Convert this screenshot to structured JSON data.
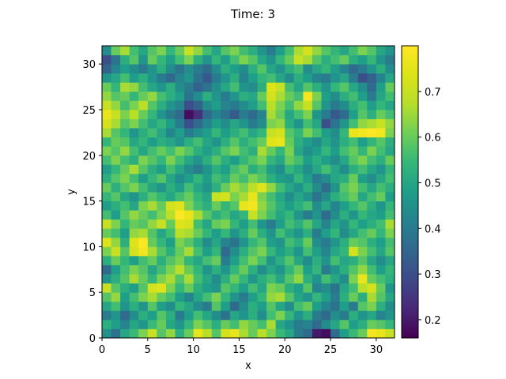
{
  "chart_data": {
    "type": "heatmap",
    "title": "Time: 3",
    "xlabel": "x",
    "ylabel": "y",
    "xlim": [
      0,
      32
    ],
    "ylim": [
      0,
      32
    ],
    "x_ticks": [
      0,
      5,
      10,
      15,
      20,
      25,
      30
    ],
    "y_ticks": [
      0,
      5,
      10,
      15,
      20,
      25,
      30
    ],
    "colorbar": {
      "colormap": "viridis",
      "vmin": 0.16,
      "vmax": 0.8,
      "ticks": [
        0.2,
        0.3,
        0.4,
        0.5,
        0.6,
        0.7
      ]
    },
    "grid_size": [
      32,
      32
    ],
    "values_note_rows_bottom_to_top": "",
    "values": [
      [
        0.45,
        0.38,
        0.5,
        0.55,
        0.62,
        0.7,
        0.58,
        0.64,
        0.52,
        0.6,
        0.76,
        0.68,
        0.58,
        0.72,
        0.76,
        0.66,
        0.6,
        0.68,
        0.62,
        0.55,
        0.5,
        0.4,
        0.36,
        0.2,
        0.18,
        0.36,
        0.48,
        0.55,
        0.6,
        0.78,
        0.76,
        0.7
      ],
      [
        0.52,
        0.48,
        0.42,
        0.5,
        0.46,
        0.55,
        0.6,
        0.5,
        0.46,
        0.54,
        0.62,
        0.58,
        0.52,
        0.6,
        0.56,
        0.64,
        0.6,
        0.56,
        0.66,
        0.5,
        0.46,
        0.4,
        0.42,
        0.36,
        0.44,
        0.5,
        0.58,
        0.48,
        0.52,
        0.6,
        0.58,
        0.54
      ],
      [
        0.4,
        0.46,
        0.36,
        0.44,
        0.52,
        0.48,
        0.58,
        0.52,
        0.4,
        0.48,
        0.56,
        0.5,
        0.44,
        0.38,
        0.5,
        0.46,
        0.52,
        0.44,
        0.56,
        0.62,
        0.54,
        0.46,
        0.52,
        0.4,
        0.36,
        0.44,
        0.4,
        0.52,
        0.46,
        0.5,
        0.42,
        0.46
      ],
      [
        0.5,
        0.56,
        0.46,
        0.52,
        0.46,
        0.58,
        0.48,
        0.44,
        0.54,
        0.5,
        0.44,
        0.4,
        0.58,
        0.48,
        0.36,
        0.44,
        0.52,
        0.48,
        0.58,
        0.5,
        0.44,
        0.56,
        0.6,
        0.48,
        0.42,
        0.38,
        0.48,
        0.4,
        0.58,
        0.62,
        0.52,
        0.44
      ],
      [
        0.58,
        0.64,
        0.48,
        0.56,
        0.62,
        0.66,
        0.6,
        0.56,
        0.48,
        0.42,
        0.5,
        0.56,
        0.62,
        0.54,
        0.46,
        0.4,
        0.48,
        0.54,
        0.64,
        0.66,
        0.58,
        0.5,
        0.46,
        0.54,
        0.48,
        0.4,
        0.52,
        0.6,
        0.52,
        0.66,
        0.58,
        0.5
      ],
      [
        0.7,
        0.58,
        0.52,
        0.48,
        0.58,
        0.72,
        0.74,
        0.62,
        0.54,
        0.6,
        0.52,
        0.48,
        0.46,
        0.58,
        0.54,
        0.48,
        0.56,
        0.5,
        0.62,
        0.6,
        0.52,
        0.48,
        0.58,
        0.42,
        0.44,
        0.38,
        0.5,
        0.56,
        0.68,
        0.72,
        0.6,
        0.46
      ],
      [
        0.46,
        0.52,
        0.58,
        0.66,
        0.6,
        0.54,
        0.62,
        0.66,
        0.58,
        0.66,
        0.56,
        0.5,
        0.44,
        0.52,
        0.6,
        0.54,
        0.46,
        0.52,
        0.56,
        0.5,
        0.58,
        0.64,
        0.52,
        0.46,
        0.56,
        0.5,
        0.44,
        0.62,
        0.76,
        0.6,
        0.56,
        0.52
      ],
      [
        0.36,
        0.48,
        0.56,
        0.62,
        0.58,
        0.5,
        0.56,
        0.62,
        0.68,
        0.6,
        0.54,
        0.46,
        0.52,
        0.46,
        0.54,
        0.6,
        0.52,
        0.44,
        0.5,
        0.46,
        0.54,
        0.6,
        0.48,
        0.54,
        0.4,
        0.46,
        0.52,
        0.58,
        0.64,
        0.56,
        0.48,
        0.54
      ],
      [
        0.52,
        0.6,
        0.54,
        0.48,
        0.56,
        0.6,
        0.52,
        0.58,
        0.62,
        0.54,
        0.5,
        0.56,
        0.6,
        0.4,
        0.48,
        0.56,
        0.62,
        0.56,
        0.46,
        0.52,
        0.58,
        0.5,
        0.44,
        0.52,
        0.46,
        0.56,
        0.5,
        0.52,
        0.58,
        0.5,
        0.44,
        0.5
      ],
      [
        0.62,
        0.7,
        0.58,
        0.72,
        0.78,
        0.66,
        0.58,
        0.52,
        0.6,
        0.66,
        0.56,
        0.48,
        0.54,
        0.36,
        0.44,
        0.52,
        0.58,
        0.62,
        0.54,
        0.48,
        0.52,
        0.46,
        0.56,
        0.48,
        0.42,
        0.5,
        0.54,
        0.72,
        0.62,
        0.56,
        0.5,
        0.58
      ],
      [
        0.74,
        0.64,
        0.52,
        0.74,
        0.8,
        0.6,
        0.54,
        0.48,
        0.62,
        0.58,
        0.52,
        0.44,
        0.5,
        0.42,
        0.38,
        0.46,
        0.54,
        0.58,
        0.48,
        0.46,
        0.56,
        0.52,
        0.6,
        0.44,
        0.4,
        0.46,
        0.52,
        0.6,
        0.58,
        0.52,
        0.48,
        0.56
      ],
      [
        0.6,
        0.56,
        0.48,
        0.64,
        0.66,
        0.58,
        0.5,
        0.56,
        0.68,
        0.66,
        0.6,
        0.54,
        0.48,
        0.54,
        0.46,
        0.52,
        0.6,
        0.52,
        0.46,
        0.56,
        0.5,
        0.46,
        0.52,
        0.4,
        0.48,
        0.54,
        0.44,
        0.5,
        0.56,
        0.6,
        0.54,
        0.62
      ],
      [
        0.7,
        0.62,
        0.54,
        0.6,
        0.58,
        0.64,
        0.7,
        0.6,
        0.74,
        0.72,
        0.56,
        0.5,
        0.6,
        0.62,
        0.54,
        0.48,
        0.56,
        0.46,
        0.4,
        0.48,
        0.56,
        0.52,
        0.58,
        0.5,
        0.42,
        0.5,
        0.46,
        0.54,
        0.48,
        0.52,
        0.56,
        0.66
      ],
      [
        0.56,
        0.48,
        0.58,
        0.64,
        0.6,
        0.56,
        0.62,
        0.68,
        0.8,
        0.76,
        0.66,
        0.58,
        0.52,
        0.56,
        0.5,
        0.54,
        0.7,
        0.62,
        0.56,
        0.5,
        0.54,
        0.46,
        0.4,
        0.46,
        0.36,
        0.44,
        0.52,
        0.46,
        0.54,
        0.5,
        0.48,
        0.56
      ],
      [
        0.48,
        0.52,
        0.56,
        0.5,
        0.62,
        0.66,
        0.6,
        0.72,
        0.74,
        0.62,
        0.56,
        0.52,
        0.6,
        0.54,
        0.58,
        0.76,
        0.78,
        0.64,
        0.58,
        0.52,
        0.48,
        0.52,
        0.56,
        0.44,
        0.5,
        0.42,
        0.48,
        0.54,
        0.58,
        0.52,
        0.46,
        0.54
      ],
      [
        0.54,
        0.58,
        0.5,
        0.46,
        0.52,
        0.58,
        0.54,
        0.5,
        0.56,
        0.6,
        0.54,
        0.5,
        0.7,
        0.72,
        0.62,
        0.66,
        0.76,
        0.62,
        0.56,
        0.5,
        0.44,
        0.5,
        0.46,
        0.38,
        0.44,
        0.52,
        0.56,
        0.6,
        0.5,
        0.56,
        0.6,
        0.48
      ],
      [
        0.6,
        0.52,
        0.58,
        0.62,
        0.56,
        0.5,
        0.46,
        0.52,
        0.48,
        0.56,
        0.5,
        0.46,
        0.52,
        0.6,
        0.66,
        0.62,
        0.68,
        0.74,
        0.64,
        0.56,
        0.5,
        0.46,
        0.52,
        0.44,
        0.36,
        0.46,
        0.58,
        0.62,
        0.56,
        0.5,
        0.56,
        0.52
      ],
      [
        0.52,
        0.58,
        0.62,
        0.56,
        0.48,
        0.54,
        0.58,
        0.5,
        0.44,
        0.48,
        0.54,
        0.48,
        0.56,
        0.52,
        0.6,
        0.56,
        0.62,
        0.58,
        0.52,
        0.48,
        0.46,
        0.54,
        0.48,
        0.4,
        0.44,
        0.5,
        0.52,
        0.6,
        0.48,
        0.44,
        0.5,
        0.56
      ],
      [
        0.48,
        0.54,
        0.6,
        0.66,
        0.58,
        0.52,
        0.48,
        0.56,
        0.5,
        0.44,
        0.4,
        0.46,
        0.52,
        0.48,
        0.56,
        0.6,
        0.52,
        0.56,
        0.48,
        0.44,
        0.54,
        0.5,
        0.44,
        0.5,
        0.56,
        0.5,
        0.44,
        0.52,
        0.56,
        0.5,
        0.46,
        0.54
      ],
      [
        0.56,
        0.62,
        0.56,
        0.52,
        0.62,
        0.58,
        0.54,
        0.62,
        0.56,
        0.5,
        0.46,
        0.52,
        0.58,
        0.52,
        0.48,
        0.54,
        0.58,
        0.62,
        0.54,
        0.5,
        0.6,
        0.56,
        0.48,
        0.52,
        0.48,
        0.44,
        0.5,
        0.58,
        0.62,
        0.56,
        0.52,
        0.6
      ],
      [
        0.62,
        0.58,
        0.64,
        0.56,
        0.5,
        0.56,
        0.6,
        0.56,
        0.62,
        0.58,
        0.52,
        0.48,
        0.52,
        0.58,
        0.62,
        0.56,
        0.52,
        0.66,
        0.6,
        0.54,
        0.62,
        0.5,
        0.44,
        0.48,
        0.54,
        0.48,
        0.56,
        0.6,
        0.54,
        0.62,
        0.56,
        0.5
      ],
      [
        0.54,
        0.6,
        0.58,
        0.5,
        0.54,
        0.48,
        0.52,
        0.5,
        0.46,
        0.52,
        0.56,
        0.5,
        0.46,
        0.52,
        0.58,
        0.52,
        0.56,
        0.6,
        0.74,
        0.76,
        0.6,
        0.52,
        0.48,
        0.44,
        0.5,
        0.46,
        0.52,
        0.56,
        0.48,
        0.54,
        0.58,
        0.52
      ],
      [
        0.66,
        0.58,
        0.54,
        0.46,
        0.52,
        0.56,
        0.5,
        0.42,
        0.48,
        0.4,
        0.44,
        0.48,
        0.54,
        0.48,
        0.52,
        0.56,
        0.5,
        0.54,
        0.7,
        0.72,
        0.58,
        0.54,
        0.62,
        0.56,
        0.48,
        0.44,
        0.54,
        0.76,
        0.78,
        0.8,
        0.78,
        0.62
      ],
      [
        0.72,
        0.66,
        0.58,
        0.62,
        0.56,
        0.5,
        0.54,
        0.48,
        0.4,
        0.3,
        0.36,
        0.42,
        0.48,
        0.44,
        0.5,
        0.46,
        0.4,
        0.44,
        0.62,
        0.64,
        0.52,
        0.46,
        0.56,
        0.5,
        0.3,
        0.38,
        0.46,
        0.56,
        0.64,
        0.66,
        0.7,
        0.64
      ],
      [
        0.76,
        0.7,
        0.62,
        0.68,
        0.6,
        0.54,
        0.46,
        0.4,
        0.36,
        0.18,
        0.24,
        0.36,
        0.42,
        0.38,
        0.32,
        0.4,
        0.36,
        0.42,
        0.66,
        0.6,
        0.5,
        0.56,
        0.62,
        0.46,
        0.4,
        0.32,
        0.36,
        0.48,
        0.58,
        0.52,
        0.6,
        0.56
      ],
      [
        0.7,
        0.64,
        0.56,
        0.62,
        0.68,
        0.58,
        0.52,
        0.46,
        0.42,
        0.3,
        0.34,
        0.44,
        0.48,
        0.42,
        0.4,
        0.44,
        0.48,
        0.56,
        0.68,
        0.62,
        0.56,
        0.64,
        0.7,
        0.58,
        0.46,
        0.4,
        0.44,
        0.52,
        0.56,
        0.48,
        0.54,
        0.5
      ],
      [
        0.64,
        0.58,
        0.6,
        0.54,
        0.6,
        0.64,
        0.56,
        0.52,
        0.48,
        0.38,
        0.44,
        0.52,
        0.46,
        0.4,
        0.46,
        0.52,
        0.5,
        0.6,
        0.72,
        0.66,
        0.6,
        0.56,
        0.78,
        0.62,
        0.48,
        0.44,
        0.52,
        0.56,
        0.48,
        0.4,
        0.5,
        0.56
      ],
      [
        0.6,
        0.54,
        0.66,
        0.64,
        0.56,
        0.5,
        0.46,
        0.52,
        0.44,
        0.4,
        0.34,
        0.38,
        0.44,
        0.5,
        0.56,
        0.46,
        0.44,
        0.52,
        0.74,
        0.7,
        0.56,
        0.5,
        0.58,
        0.52,
        0.46,
        0.54,
        0.58,
        0.5,
        0.44,
        0.36,
        0.48,
        0.6
      ],
      [
        0.46,
        0.5,
        0.56,
        0.48,
        0.52,
        0.46,
        0.4,
        0.36,
        0.42,
        0.46,
        0.38,
        0.32,
        0.4,
        0.46,
        0.52,
        0.42,
        0.48,
        0.54,
        0.56,
        0.5,
        0.44,
        0.52,
        0.48,
        0.42,
        0.4,
        0.46,
        0.5,
        0.4,
        0.3,
        0.34,
        0.42,
        0.5
      ],
      [
        0.34,
        0.42,
        0.48,
        0.44,
        0.4,
        0.46,
        0.52,
        0.44,
        0.38,
        0.44,
        0.4,
        0.36,
        0.44,
        0.52,
        0.48,
        0.44,
        0.52,
        0.58,
        0.5,
        0.46,
        0.52,
        0.56,
        0.44,
        0.5,
        0.54,
        0.48,
        0.42,
        0.36,
        0.4,
        0.46,
        0.52,
        0.44
      ],
      [
        0.3,
        0.38,
        0.52,
        0.58,
        0.46,
        0.6,
        0.54,
        0.48,
        0.56,
        0.62,
        0.52,
        0.46,
        0.54,
        0.48,
        0.56,
        0.62,
        0.58,
        0.5,
        0.46,
        0.54,
        0.6,
        0.7,
        0.66,
        0.58,
        0.52,
        0.56,
        0.6,
        0.52,
        0.48,
        0.54,
        0.46,
        0.4
      ],
      [
        0.44,
        0.6,
        0.66,
        0.56,
        0.5,
        0.58,
        0.62,
        0.54,
        0.6,
        0.7,
        0.64,
        0.56,
        0.5,
        0.58,
        0.62,
        0.56,
        0.52,
        0.46,
        0.4,
        0.48,
        0.56,
        0.66,
        0.72,
        0.64,
        0.58,
        0.54,
        0.5,
        0.56,
        0.62,
        0.58,
        0.5,
        0.46
      ]
    ]
  }
}
